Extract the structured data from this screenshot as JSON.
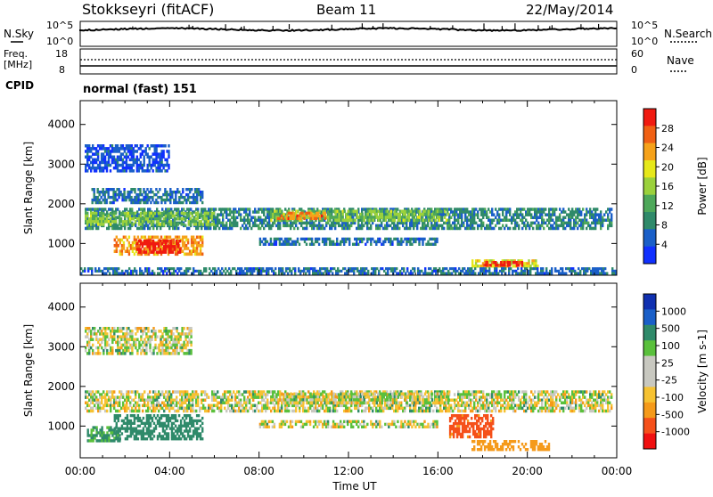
{
  "header": {
    "station": "Stokkseyri (fitACF)",
    "beam": "Beam 11",
    "date": "22/May/2014"
  },
  "top_panel": {
    "left_label": "N.Sky",
    "right_label": "N.Search",
    "left_ticks": [
      "10^5",
      "10^0"
    ],
    "right_ticks": [
      "10^5",
      "10^0"
    ]
  },
  "freq_panel": {
    "left_label_1": "Freq.",
    "left_label_2": "[MHz]",
    "right_label": "Nave",
    "left_ticks": [
      "18",
      "8"
    ],
    "right_ticks": [
      "60",
      "0"
    ]
  },
  "cpid": {
    "label": "CPID",
    "value": "normal (fast) 151"
  },
  "colors": {
    "power_scale": [
      "#1030ff",
      "#1a5fc8",
      "#2f8a6a",
      "#4ea85a",
      "#9bd13c",
      "#e6e81a",
      "#f6a21a",
      "#f06014",
      "#f01a10"
    ],
    "velocity_scale": [
      "#f01010",
      "#f5501a",
      "#f59a1a",
      "#f6c232",
      "#c8c8c0",
      "#c8c8c0",
      "#5ac03c",
      "#2f8a6a",
      "#1a5fc8",
      "#1030b0"
    ]
  },
  "chart_data": [
    {
      "type": "heatmap",
      "panel": "power",
      "title": "",
      "xlabel": "Time UT",
      "ylabel": "Slant Range [km]",
      "x_ticks": [
        "00:00",
        "04:00",
        "08:00",
        "12:00",
        "16:00",
        "20:00",
        "00:00"
      ],
      "y_ticks": [
        "1000",
        "2000",
        "3000",
        "4000"
      ],
      "xlim": [
        0,
        24
      ],
      "ylim": [
        200,
        4600
      ],
      "colorbar": {
        "label": "Power [dB]",
        "ticks": [
          "4",
          "8",
          "12",
          "16",
          "20",
          "24",
          "28"
        ],
        "range": [
          0,
          30
        ]
      },
      "bands": [
        {
          "t0": 0.2,
          "t1": 23.8,
          "r0": 1350,
          "r1": 1900,
          "value": 8
        },
        {
          "t0": 0.5,
          "t1": 5.5,
          "r0": 2000,
          "r1": 2400,
          "value": 6
        },
        {
          "t0": 0.2,
          "t1": 4.0,
          "r0": 2800,
          "r1": 3500,
          "value": 4
        },
        {
          "t0": 8.5,
          "t1": 16.5,
          "r0": 1550,
          "r1": 1850,
          "value": 14
        },
        {
          "t0": 8.8,
          "t1": 11.0,
          "r0": 1600,
          "r1": 1800,
          "value": 24
        },
        {
          "t0": 0.2,
          "t1": 6.0,
          "r0": 1450,
          "r1": 1800,
          "value": 14
        },
        {
          "t0": 1.5,
          "t1": 5.5,
          "r0": 700,
          "r1": 1200,
          "value": 22
        },
        {
          "t0": 2.5,
          "t1": 4.5,
          "r0": 750,
          "r1": 1100,
          "value": 28
        },
        {
          "t0": 8.0,
          "t1": 16.0,
          "r0": 950,
          "r1": 1150,
          "value": 6
        },
        {
          "t0": 17.5,
          "t1": 20.5,
          "r0": 400,
          "r1": 600,
          "value": 18
        },
        {
          "t0": 18.0,
          "t1": 19.8,
          "r0": 420,
          "r1": 560,
          "value": 28
        },
        {
          "t0": 0.0,
          "t1": 24.0,
          "r0": 220,
          "r1": 400,
          "value": 6
        }
      ]
    },
    {
      "type": "heatmap",
      "panel": "velocity",
      "title": "",
      "xlabel": "Time UT",
      "ylabel": "Slant Range [km]",
      "x_ticks": [
        "00:00",
        "04:00",
        "08:00",
        "12:00",
        "16:00",
        "20:00",
        "00:00"
      ],
      "y_ticks": [
        "1000",
        "2000",
        "3000",
        "4000"
      ],
      "xlim": [
        0,
        24
      ],
      "ylim": [
        200,
        4600
      ],
      "colorbar": {
        "label": "Velocity [m s-1]",
        "ticks": [
          "-1000",
          "-500",
          "-100",
          "-25",
          "25",
          "100",
          "500",
          "1000"
        ]
      },
      "bands": [
        {
          "t0": 0.2,
          "t1": 23.8,
          "r0": 1350,
          "r1": 1900,
          "value": 0
        },
        {
          "t0": 0.2,
          "t1": 5.0,
          "r0": 2800,
          "r1": 3500,
          "value": 0
        },
        {
          "t0": 8.5,
          "t1": 16.5,
          "r0": 1550,
          "r1": 1850,
          "value": 0
        },
        {
          "t0": 1.5,
          "t1": 5.5,
          "r0": 650,
          "r1": 1300,
          "value": 300
        },
        {
          "t0": 0.3,
          "t1": 1.8,
          "r0": 600,
          "r1": 1000,
          "value": 150
        },
        {
          "t0": 17.5,
          "t1": 21.0,
          "r0": 380,
          "r1": 650,
          "value": -250
        },
        {
          "t0": 16.5,
          "t1": 18.5,
          "r0": 700,
          "r1": 1300,
          "value": -600
        },
        {
          "t0": 8.0,
          "t1": 16.0,
          "r0": 950,
          "r1": 1150,
          "value": 0
        }
      ]
    }
  ]
}
